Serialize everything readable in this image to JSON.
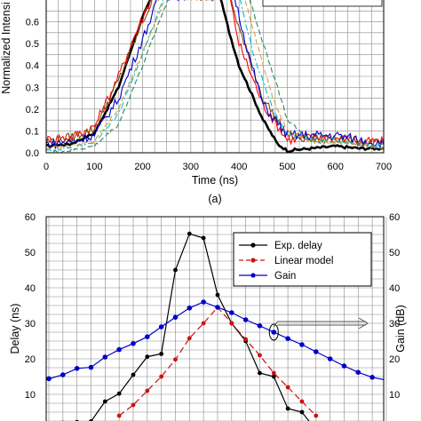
{
  "chart_data": [
    {
      "type": "line",
      "panel_label": "(a)",
      "xlabel": "Time (ns)",
      "ylabel": "Normalized Intensi",
      "xlim": [
        0,
        700
      ],
      "ylim": [
        0,
        0.7
      ],
      "xticks": [
        0,
        100,
        200,
        300,
        400,
        500,
        600,
        700
      ],
      "yticks": [
        0,
        0.1,
        0.2,
        0.3,
        0.4,
        0.5,
        0.6
      ],
      "xtick_labels": [
        "0",
        "100",
        "200",
        "300",
        "400",
        "500",
        "600",
        "700"
      ],
      "ytick_labels": [
        "0.0",
        "0.1",
        "0.2",
        "0.3",
        "0.4",
        "0.5",
        "0.6"
      ],
      "grid": true,
      "series": [
        {
          "color": "#000000",
          "style": "solid-thick",
          "x": [
            0,
            50,
            100,
            150,
            180,
            200,
            220,
            360,
            380,
            400,
            450,
            480,
            500,
            550,
            600,
            650,
            700
          ],
          "y": [
            0.03,
            0.04,
            0.09,
            0.3,
            0.5,
            0.62,
            0.72,
            0.72,
            0.55,
            0.4,
            0.15,
            0.04,
            0.01,
            0.02,
            0.03,
            0.02,
            0.02
          ]
        },
        {
          "color": "#ff0000",
          "style": "noisy",
          "x": [
            0,
            50,
            100,
            150,
            180,
            200,
            220,
            380,
            400,
            450,
            500,
            550,
            600,
            650,
            700
          ],
          "y": [
            0.06,
            0.07,
            0.12,
            0.35,
            0.52,
            0.62,
            0.72,
            0.72,
            0.5,
            0.22,
            0.06,
            0.07,
            0.07,
            0.05,
            0.05
          ]
        },
        {
          "color": "#8b4513",
          "style": "noisy",
          "x": [
            0,
            50,
            100,
            150,
            200,
            225,
            380,
            410,
            450,
            500,
            550,
            600,
            650,
            700
          ],
          "y": [
            0.05,
            0.07,
            0.11,
            0.33,
            0.6,
            0.72,
            0.72,
            0.5,
            0.25,
            0.08,
            0.06,
            0.07,
            0.05,
            0.04
          ]
        },
        {
          "color": "#0000cc",
          "style": "noisy",
          "x": [
            0,
            50,
            100,
            150,
            200,
            235,
            390,
            420,
            450,
            500,
            550,
            600,
            650,
            700
          ],
          "y": [
            0.04,
            0.05,
            0.08,
            0.25,
            0.52,
            0.72,
            0.72,
            0.45,
            0.22,
            0.08,
            0.08,
            0.08,
            0.06,
            0.04
          ]
        },
        {
          "color": "#00bcd4",
          "style": "dashdot",
          "x": [
            0,
            50,
            100,
            150,
            200,
            245,
            400,
            430,
            470,
            500,
            550,
            600,
            650,
            700
          ],
          "y": [
            0.01,
            0.02,
            0.05,
            0.18,
            0.45,
            0.72,
            0.72,
            0.45,
            0.2,
            0.08,
            0.06,
            0.06,
            0.04,
            0.03
          ]
        },
        {
          "color": "#2e8b57",
          "style": "dashed",
          "x": [
            0,
            50,
            100,
            150,
            200,
            255,
            420,
            450,
            480,
            500,
            550,
            600,
            650,
            700
          ],
          "y": [
            0.0,
            0.01,
            0.03,
            0.13,
            0.4,
            0.72,
            0.72,
            0.5,
            0.3,
            0.15,
            0.05,
            0.05,
            0.04,
            0.02
          ]
        },
        {
          "color": "#d2a040",
          "style": "dashed",
          "x": [
            0,
            50,
            100,
            150,
            200,
            250,
            410,
            440,
            470,
            500,
            550,
            600,
            650,
            700
          ],
          "y": [
            0.02,
            0.03,
            0.05,
            0.2,
            0.46,
            0.72,
            0.72,
            0.48,
            0.25,
            0.1,
            0.05,
            0.05,
            0.04,
            0.02
          ]
        }
      ]
    },
    {
      "type": "line",
      "ylabel": "Delay (ns)",
      "ylabel_right": "Gain (dB)",
      "ylim": [
        0,
        60
      ],
      "ylim_right": [
        0,
        60
      ],
      "yticks": [
        10,
        20,
        30,
        40,
        50,
        60
      ],
      "ytick_labels": [
        "10",
        "20",
        "30",
        "40",
        "50",
        "60"
      ],
      "ytick_labels_right": [
        "10",
        "20",
        "30",
        "40",
        "50",
        "60"
      ],
      "grid": true,
      "legend": {
        "placement": "top-right",
        "entries": [
          "Exp. delay",
          "Linear model",
          "Gain"
        ]
      },
      "x": [
        0,
        1,
        2,
        3,
        4,
        5,
        6,
        7,
        8,
        9,
        10,
        11,
        12,
        13,
        14,
        15,
        16,
        17,
        18,
        19,
        20,
        21,
        22,
        23,
        24
      ],
      "series": [
        {
          "name": "Exp. delay",
          "color": "#000000",
          "axis": "left",
          "values": [
            null,
            2,
            2.2,
            2.4,
            8,
            10.2,
            15.5,
            20.6,
            21.4,
            45,
            55.2,
            54,
            38,
            30,
            25,
            16,
            15,
            6,
            5,
            0,
            null,
            null,
            null,
            null,
            null
          ]
        },
        {
          "name": "Linear model",
          "color": "#cc1111",
          "axis": "left",
          "values": [
            null,
            null,
            null,
            null,
            null,
            4,
            7,
            11,
            15,
            19.8,
            25.8,
            30,
            34.5,
            30,
            25.5,
            21,
            16,
            12,
            8,
            4,
            null,
            null,
            null,
            null,
            null
          ]
        },
        {
          "name": "Gain",
          "color": "#0000cc",
          "axis": "right",
          "values": [
            14.4,
            15.5,
            17.3,
            17.6,
            20.5,
            22.6,
            24.3,
            26.2,
            29,
            31.7,
            34.3,
            36,
            34.5,
            33,
            31,
            29.3,
            27.5,
            25.7,
            24,
            22,
            20,
            18,
            16.2,
            14.8,
            14
          ]
        }
      ],
      "annotations": [
        {
          "type": "ellipse",
          "series": "Gain"
        },
        {
          "type": "arrow",
          "direction": "right",
          "points_to": "right-axis"
        }
      ]
    }
  ]
}
